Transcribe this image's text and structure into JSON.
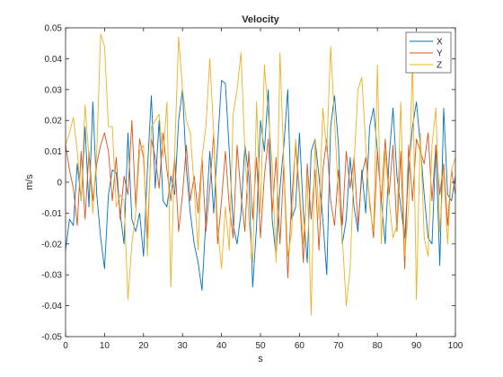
{
  "chart_data": {
    "type": "line",
    "title": "Velocity",
    "xlabel": "s",
    "ylabel": "m/s",
    "xlim": [
      0,
      100
    ],
    "ylim": [
      -0.05,
      0.05
    ],
    "xticks": [
      0,
      10,
      20,
      30,
      40,
      50,
      60,
      70,
      80,
      90,
      100
    ],
    "yticks": [
      -0.05,
      -0.04,
      -0.03,
      -0.02,
      -0.01,
      0,
      0.01,
      0.02,
      0.03,
      0.04,
      0.05
    ],
    "ytick_labels": [
      "-0.05",
      "-0.04",
      "-0.03",
      "-0.02",
      "-0.01",
      "0",
      "0.01",
      "0.02",
      "0.03",
      "0.04",
      "0.05"
    ],
    "grid": false,
    "box": true,
    "legend": {
      "placement": "top-right"
    },
    "series": [
      {
        "name": "X",
        "color": "#0072BD",
        "x": [
          0,
          1,
          2,
          3,
          4,
          5,
          6,
          7,
          8,
          9,
          10,
          11,
          12,
          13,
          14,
          15,
          16,
          17,
          18,
          19,
          20,
          21,
          22,
          23,
          24,
          25,
          26,
          27,
          28,
          29,
          30,
          31,
          32,
          33,
          34,
          35,
          36,
          37,
          38,
          39,
          40,
          41,
          42,
          43,
          44,
          45,
          46,
          47,
          48,
          49,
          50,
          51,
          52,
          53,
          54,
          55,
          56,
          57,
          58,
          59,
          60,
          61,
          62,
          63,
          64,
          65,
          66,
          67,
          68,
          69,
          70,
          71,
          72,
          73,
          74,
          75,
          76,
          77,
          78,
          79,
          80,
          81,
          82,
          83,
          84,
          85,
          86,
          87,
          88,
          89,
          90,
          91,
          92,
          93,
          94,
          95,
          96,
          97,
          98,
          99,
          100
        ],
        "y": [
          -0.022,
          -0.012,
          -0.014,
          0.006,
          -0.006,
          0.018,
          -0.008,
          0.026,
          -0.004,
          -0.018,
          -0.028,
          -0.004,
          0.004,
          0.003,
          -0.01,
          -0.02,
          0.016,
          -0.012,
          -0.016,
          -0.01,
          -0.024,
          0.004,
          0.028,
          -0.002,
          0.02,
          -0.006,
          -0.008,
          0.002,
          -0.004,
          0.02,
          0.03,
          0.004,
          -0.01,
          -0.02,
          -0.026,
          -0.035,
          -0.012,
          0.01,
          -0.01,
          0.012,
          0.033,
          0.032,
          0.01,
          -0.014,
          -0.02,
          -0.01,
          0.012,
          0.002,
          -0.034,
          -0.014,
          0.02,
          0.01,
          0.03,
          -0.012,
          -0.024,
          -0.002,
          0.012,
          0.03,
          -0.012,
          -0.008,
          0.016,
          -0.01,
          -0.026,
          0.01,
          0.014,
          0.002,
          -0.012,
          -0.03,
          0.018,
          0.028,
          0.012,
          -0.02,
          -0.012,
          0.008,
          -0.008,
          -0.016,
          0.004,
          -0.01,
          0.018,
          0.024,
          0.01,
          -0.006,
          -0.02,
          0.008,
          0.024,
          0.002,
          -0.008,
          -0.018,
          0.004,
          0.018,
          0.026,
          0.012,
          -0.004,
          -0.018,
          -0.02,
          0.012,
          -0.027,
          0.024,
          -0.004,
          -0.006,
          0.002
        ]
      },
      {
        "name": "Y",
        "color": "#D95319",
        "x": [
          0,
          1,
          2,
          3,
          4,
          5,
          6,
          7,
          8,
          9,
          10,
          11,
          12,
          13,
          14,
          15,
          16,
          17,
          18,
          19,
          20,
          21,
          22,
          23,
          24,
          25,
          26,
          27,
          28,
          29,
          30,
          31,
          32,
          33,
          34,
          35,
          36,
          37,
          38,
          39,
          40,
          41,
          42,
          43,
          44,
          45,
          46,
          47,
          48,
          49,
          50,
          51,
          52,
          53,
          54,
          55,
          56,
          57,
          58,
          59,
          60,
          61,
          62,
          63,
          64,
          65,
          66,
          67,
          68,
          69,
          70,
          71,
          72,
          73,
          74,
          75,
          76,
          77,
          78,
          79,
          80,
          81,
          82,
          83,
          84,
          85,
          86,
          87,
          88,
          89,
          90,
          91,
          92,
          93,
          94,
          95,
          96,
          97,
          98,
          99,
          100
        ],
        "y": [
          0.012,
          0.004,
          -0.002,
          -0.014,
          0.01,
          -0.012,
          0.01,
          -0.006,
          0.006,
          0.012,
          0.016,
          0.01,
          -0.006,
          0.008,
          -0.012,
          0.002,
          -0.004,
          0.02,
          -0.008,
          0.014,
          0.008,
          -0.018,
          0.014,
          0.008,
          -0.002,
          0.016,
          0.004,
          -0.006,
          0.008,
          -0.016,
          -0.004,
          0.012,
          -0.006,
          0.002,
          -0.01,
          0.008,
          -0.016,
          -0.002,
          0.016,
          -0.02,
          -0.006,
          0.01,
          -0.008,
          -0.018,
          0.012,
          -0.004,
          -0.016,
          0.01,
          -0.012,
          0.008,
          -0.018,
          0.002,
          0.014,
          -0.01,
          0.008,
          -0.02,
          0.006,
          -0.031,
          -0.006,
          0.012,
          -0.004,
          -0.026,
          0.006,
          -0.012,
          0.004,
          -0.022,
          0.004,
          0.014,
          -0.006,
          -0.014,
          0.004,
          -0.014,
          0.01,
          -0.002,
          0.008,
          -0.014,
          0.002,
          0.008,
          -0.006,
          -0.018,
          0.01,
          -0.006,
          0.014,
          -0.004,
          0.012,
          -0.016,
          0.01,
          -0.028,
          0.012,
          -0.006,
          0.014,
          0.01,
          0.006,
          0.016,
          -0.006,
          0.012,
          -0.004,
          0.006,
          -0.014,
          0.004,
          -0.004
        ]
      },
      {
        "name": "Z",
        "color": "#EDB120",
        "x": [
          0,
          1,
          2,
          3,
          4,
          5,
          6,
          7,
          8,
          9,
          10,
          11,
          12,
          13,
          14,
          15,
          16,
          17,
          18,
          19,
          20,
          21,
          22,
          23,
          24,
          25,
          26,
          27,
          28,
          29,
          30,
          31,
          32,
          33,
          34,
          35,
          36,
          37,
          38,
          39,
          40,
          41,
          42,
          43,
          44,
          45,
          46,
          47,
          48,
          49,
          50,
          51,
          52,
          53,
          54,
          55,
          56,
          57,
          58,
          59,
          60,
          61,
          62,
          63,
          64,
          65,
          66,
          67,
          68,
          69,
          70,
          71,
          72,
          73,
          74,
          75,
          76,
          77,
          78,
          79,
          80,
          81,
          82,
          83,
          84,
          85,
          86,
          87,
          88,
          89,
          90,
          91,
          92,
          93,
          94,
          95,
          96,
          97,
          98,
          99,
          100
        ],
        "y": [
          0.012,
          0.016,
          0.021,
          0.01,
          -0.006,
          0.025,
          0.008,
          -0.01,
          0.01,
          0.048,
          0.044,
          0.018,
          0.018,
          -0.008,
          -0.004,
          -0.006,
          -0.038,
          -0.02,
          -0.01,
          0.01,
          0.012,
          -0.024,
          0.018,
          0.02,
          0.022,
          0.008,
          0.026,
          -0.034,
          0.01,
          0.047,
          0.03,
          0.02,
          0.016,
          -0.002,
          -0.022,
          0.008,
          0.018,
          0.04,
          0.016,
          -0.014,
          -0.028,
          -0.008,
          -0.022,
          0.022,
          0.03,
          0.042,
          0.01,
          -0.012,
          -0.026,
          0.026,
          -0.01,
          0.038,
          0.022,
          0.006,
          -0.026,
          0.042,
          0.006,
          -0.024,
          -0.016,
          0.014,
          -0.002,
          -0.02,
          0.002,
          -0.043,
          0.014,
          -0.012,
          0.024,
          0.01,
          0.044,
          0.02,
          -0.004,
          -0.018,
          -0.04,
          -0.028,
          0.006,
          0.03,
          0.034,
          0.012,
          -0.008,
          -0.016,
          0.038,
          -0.02,
          0.01,
          -0.006,
          -0.018,
          -0.014,
          0.026,
          -0.024,
          -0.008,
          0.04,
          -0.038,
          0.016,
          -0.018,
          -0.024,
          0.012,
          0.024,
          -0.016,
          0.004,
          -0.02,
          0.004,
          0.008
        ]
      }
    ]
  }
}
